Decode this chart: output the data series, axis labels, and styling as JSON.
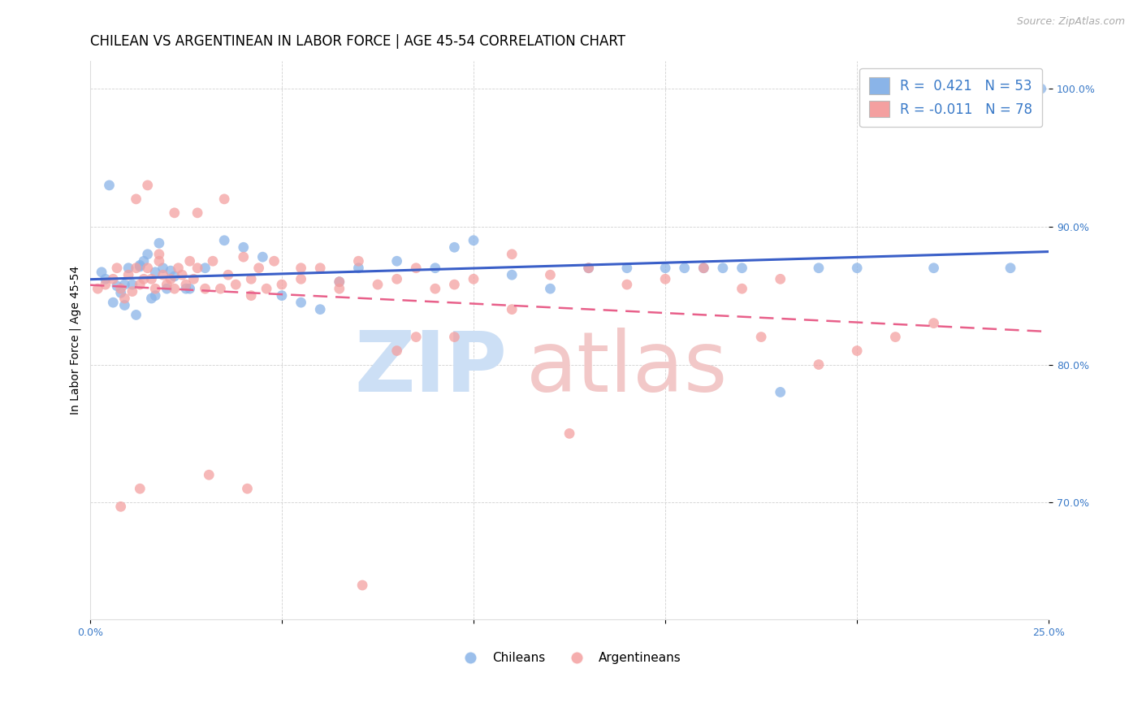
{
  "title": "CHILEAN VS ARGENTINEAN IN LABOR FORCE | AGE 45-54 CORRELATION CHART",
  "source": "Source: ZipAtlas.com",
  "ylabel": "In Labor Force | Age 45-54",
  "xlim": [
    0.0,
    0.25
  ],
  "ylim": [
    0.615,
    1.02
  ],
  "ytick_positions": [
    0.7,
    0.8,
    0.9,
    1.0
  ],
  "yticklabels": [
    "70.0%",
    "80.0%",
    "90.0%",
    "100.0%"
  ],
  "blue_color": "#8ab4e8",
  "pink_color": "#f4a0a0",
  "line_blue": "#3a5fc8",
  "line_pink": "#e8608a",
  "watermark_zip_color": "#ccdff5",
  "watermark_atlas_color": "#f2c8c8",
  "r_blue": 0.421,
  "n_blue": 53,
  "r_pink": -0.011,
  "n_pink": 78,
  "title_fontsize": 12,
  "axis_label_fontsize": 10,
  "tick_fontsize": 9,
  "legend_fontsize": 12,
  "blue_scatter_x": [
    0.003,
    0.005,
    0.007,
    0.008,
    0.009,
    0.01,
    0.011,
    0.012,
    0.013,
    0.014,
    0.015,
    0.016,
    0.017,
    0.018,
    0.019,
    0.02,
    0.022,
    0.025,
    0.03,
    0.035,
    0.04,
    0.045,
    0.05,
    0.055,
    0.06,
    0.065,
    0.07,
    0.08,
    0.09,
    0.095,
    0.1,
    0.11,
    0.12,
    0.13,
    0.14,
    0.15,
    0.155,
    0.16,
    0.165,
    0.17,
    0.18,
    0.19,
    0.2,
    0.22,
    0.24,
    0.248,
    0.004,
    0.006,
    0.009,
    0.013,
    0.017,
    0.021,
    0.026
  ],
  "blue_scatter_y": [
    0.867,
    0.93,
    0.857,
    0.852,
    0.843,
    0.87,
    0.858,
    0.836,
    0.871,
    0.875,
    0.88,
    0.848,
    0.867,
    0.888,
    0.87,
    0.855,
    0.864,
    0.855,
    0.87,
    0.89,
    0.885,
    0.878,
    0.85,
    0.845,
    0.84,
    0.86,
    0.87,
    0.875,
    0.87,
    0.885,
    0.89,
    0.865,
    0.855,
    0.87,
    0.87,
    0.87,
    0.87,
    0.87,
    0.87,
    0.87,
    0.78,
    0.87,
    0.87,
    0.87,
    0.87,
    1.0,
    0.862,
    0.845,
    0.858,
    0.872,
    0.85,
    0.868,
    0.855
  ],
  "pink_scatter_x": [
    0.002,
    0.004,
    0.006,
    0.007,
    0.008,
    0.009,
    0.01,
    0.011,
    0.012,
    0.013,
    0.014,
    0.015,
    0.016,
    0.017,
    0.018,
    0.019,
    0.02,
    0.021,
    0.022,
    0.023,
    0.024,
    0.025,
    0.026,
    0.027,
    0.028,
    0.03,
    0.032,
    0.034,
    0.036,
    0.038,
    0.04,
    0.042,
    0.044,
    0.046,
    0.048,
    0.05,
    0.055,
    0.06,
    0.065,
    0.07,
    0.075,
    0.08,
    0.085,
    0.09,
    0.095,
    0.1,
    0.11,
    0.12,
    0.13,
    0.14,
    0.15,
    0.16,
    0.17,
    0.18,
    0.19,
    0.2,
    0.21,
    0.22,
    0.175,
    0.085,
    0.012,
    0.015,
    0.018,
    0.022,
    0.028,
    0.035,
    0.042,
    0.055,
    0.065,
    0.08,
    0.095,
    0.11,
    0.125,
    0.008,
    0.013,
    0.031,
    0.041,
    0.071
  ],
  "pink_scatter_y": [
    0.855,
    0.858,
    0.862,
    0.87,
    0.855,
    0.848,
    0.865,
    0.853,
    0.87,
    0.858,
    0.862,
    0.87,
    0.862,
    0.855,
    0.875,
    0.865,
    0.858,
    0.862,
    0.855,
    0.87,
    0.865,
    0.858,
    0.875,
    0.862,
    0.87,
    0.855,
    0.875,
    0.855,
    0.865,
    0.858,
    0.878,
    0.862,
    0.87,
    0.855,
    0.875,
    0.858,
    0.862,
    0.87,
    0.855,
    0.875,
    0.858,
    0.862,
    0.87,
    0.855,
    0.858,
    0.862,
    0.88,
    0.865,
    0.87,
    0.858,
    0.862,
    0.87,
    0.855,
    0.862,
    0.8,
    0.81,
    0.82,
    0.83,
    0.82,
    0.82,
    0.92,
    0.93,
    0.88,
    0.91,
    0.91,
    0.92,
    0.85,
    0.87,
    0.86,
    0.81,
    0.82,
    0.84,
    0.75,
    0.697,
    0.71,
    0.72,
    0.71,
    0.64
  ]
}
